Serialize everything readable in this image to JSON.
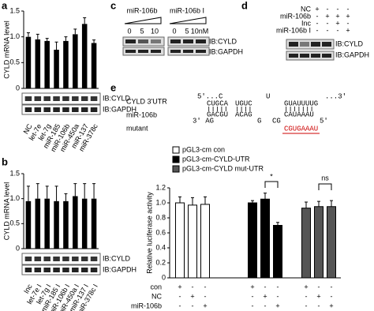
{
  "panel_labels": [
    "a",
    "b",
    "c",
    "d",
    "e"
  ],
  "chart_data": [
    {
      "type": "bar",
      "y_label": "CYLD mRNA level",
      "categories": [
        "NC",
        "let-7e",
        "let-7g",
        "miR-185",
        "miR-106b",
        "miR-450a",
        "miR-137",
        "miR-378c"
      ],
      "values": [
        1.0,
        0.95,
        0.92,
        0.75,
        0.92,
        1.05,
        1.25,
        0.88
      ],
      "errors": [
        0.08,
        0.1,
        0.05,
        0.15,
        0.08,
        0.1,
        0.12,
        0.06
      ],
      "color": "#000000",
      "ylim": [
        0,
        1.5
      ],
      "yticks": [
        0,
        0.5,
        {
          "value": 1,
          "label": "1.0"
        },
        1.5
      ],
      "blots": [
        "IB:CYLD",
        "IB:GAPDH"
      ]
    },
    {
      "type": "bar",
      "y_label": "CYLD mRNA level",
      "categories": [
        "Inc",
        "let-7e I",
        "let-7g I",
        "miR-185 I",
        "miR-106b I",
        "miR-450a I",
        "miR-137 I",
        "miR-378c I"
      ],
      "values": [
        0.95,
        1.0,
        1.0,
        0.95,
        0.95,
        1.05,
        1.0,
        1.0
      ],
      "errors": [
        0.3,
        0.3,
        0.25,
        0.3,
        0.15,
        0.25,
        0.3,
        0.3
      ],
      "color": "#000000",
      "ylim": [
        0,
        1.5
      ],
      "yticks": [
        0,
        0.5,
        {
          "value": 1,
          "label": "1.0"
        },
        1.5
      ],
      "blots": [
        "IB:CYLD",
        "IB:GAPDH"
      ]
    },
    {
      "type": "bar",
      "y_label": "Relative luciferase activity",
      "categories": [
        "con",
        "NC",
        "miR-106b"
      ],
      "series": [
        {
          "name": "pGL3-cm con",
          "color": "#ffffff",
          "values": [
            1.0,
            0.97,
            0.98
          ],
          "errors": [
            0.08,
            0.1,
            0.1
          ]
        },
        {
          "name": "pGL3-cm-CYLD-UTR",
          "color": "#000000",
          "values": [
            1.0,
            1.05,
            0.7
          ],
          "errors": [
            0.03,
            0.08,
            0.04
          ]
        },
        {
          "name": "pGL3-cm-CYLD mut-UTR",
          "color": "#555555",
          "values": [
            0.93,
            0.95,
            0.95
          ],
          "errors": [
            0.08,
            0.07,
            0.08
          ]
        }
      ],
      "condition_signs": [
        [
          "+",
          "-",
          "-",
          "+",
          "-",
          "-",
          "+",
          "-",
          "-"
        ],
        [
          "-",
          "+",
          "-",
          "-",
          "+",
          "-",
          "-",
          "+",
          "-"
        ],
        [
          "-",
          "-",
          "+",
          "-",
          "-",
          "+",
          "-",
          "-",
          "+"
        ]
      ],
      "ylim": [
        0,
        1.2
      ],
      "yticks": [
        0,
        0.2,
        0.4,
        0.6,
        0.8,
        {
          "value": 1,
          "label": "1.0"
        },
        1.2
      ],
      "annotations": [
        "*",
        "ns"
      ]
    }
  ],
  "panel_c": {
    "treatments": [
      "miR-106b",
      "miR-106b I"
    ],
    "doses": [
      [
        "0",
        "5",
        "10"
      ],
      [
        "0",
        "5",
        "10nM"
      ]
    ],
    "blots": [
      "IB:CYLD",
      "IB:GAPDH"
    ]
  },
  "panel_d": {
    "rows": [
      {
        "label": "NC",
        "signs": [
          "+",
          "-",
          "-",
          "-"
        ]
      },
      {
        "label": "miR-106b",
        "signs": [
          "-",
          "+",
          "+",
          "+"
        ]
      },
      {
        "label": "Inc",
        "signs": [
          "-",
          "-",
          "+",
          "-"
        ]
      },
      {
        "label": "miR-106b I",
        "signs": [
          "-",
          "-",
          "-",
          "+"
        ]
      }
    ],
    "blots": [
      "IB:CYLD",
      "IB:GAPDH"
    ]
  },
  "sequence": {
    "labels": [
      "CYLD 3'UTR",
      "miR-106b",
      "mutant"
    ],
    "utr_pieces": [
      "5'...C",
      "CUGCA",
      "UGUC",
      "U",
      "GUAUUUUG",
      "...3'"
    ],
    "mir_pieces": [
      "3' AG",
      "GACGU",
      "ACAG",
      "G",
      "CG",
      "CAUAAAU",
      "5'"
    ],
    "mutant": "CGUGAAAU"
  }
}
